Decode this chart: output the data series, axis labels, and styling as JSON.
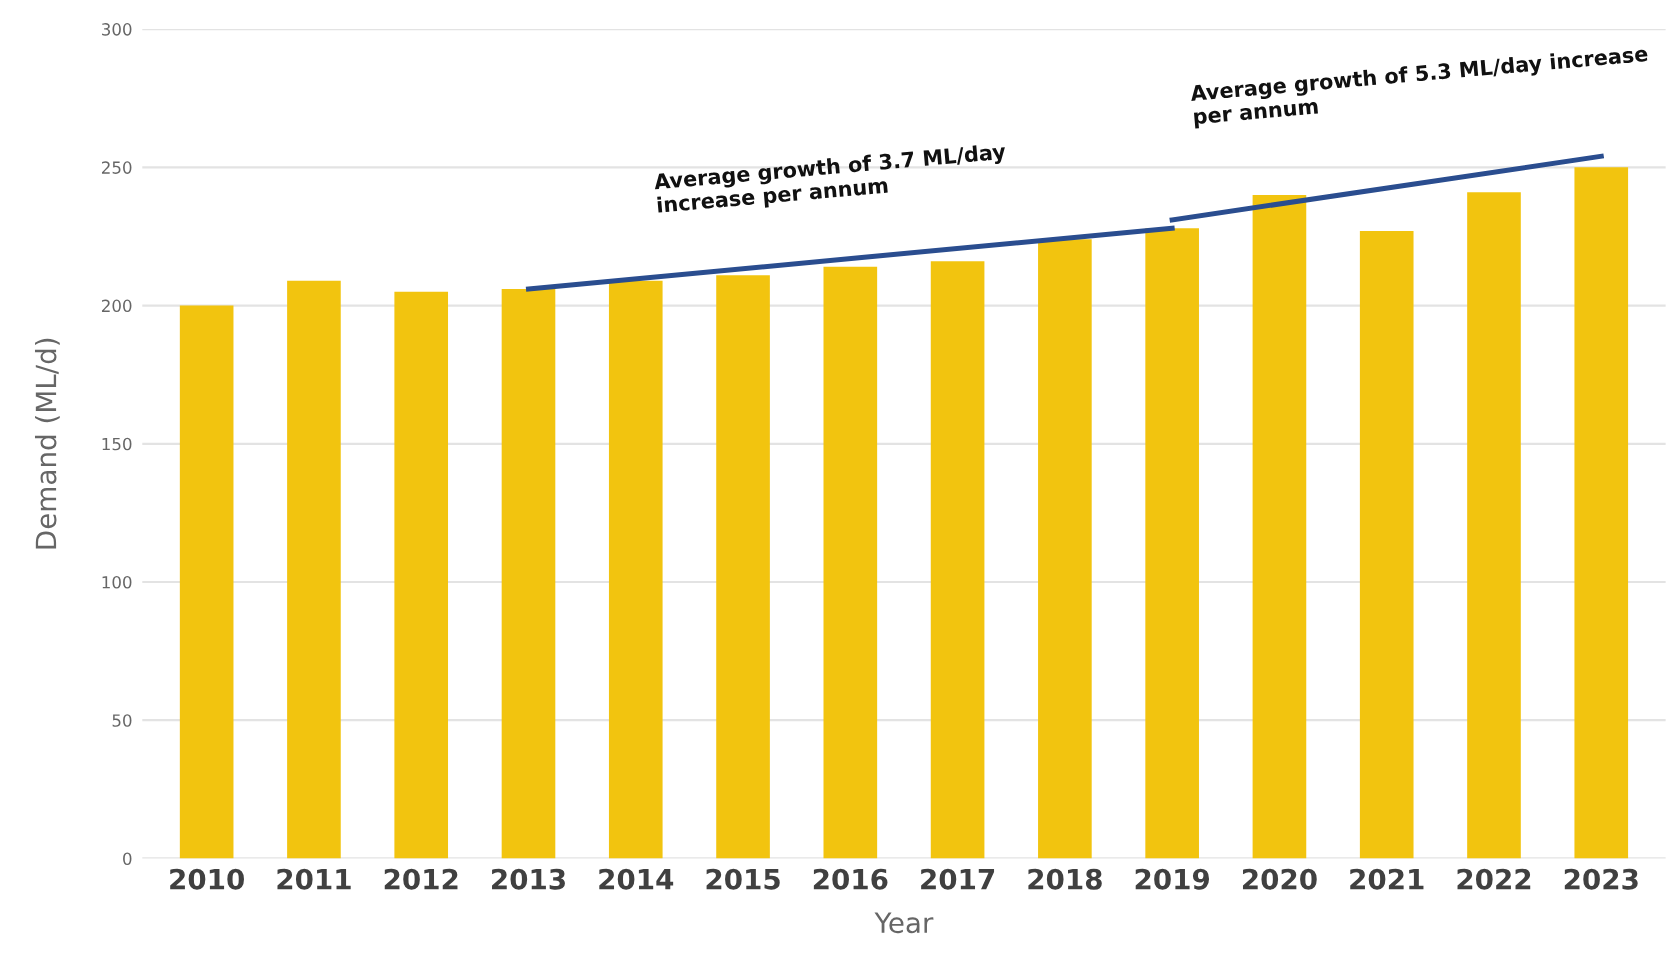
{
  "chart_data": {
    "type": "bar",
    "xlabel": "Year",
    "ylabel": "Demand (ML/d)",
    "categories": [
      "2010",
      "2011",
      "2012",
      "2013",
      "2014",
      "2015",
      "2016",
      "2017",
      "2018",
      "2019",
      "2020",
      "2021",
      "2022",
      "2023"
    ],
    "series": [
      {
        "color": "#f2c40f",
        "values": [
          200,
          209,
          205,
          206,
          209,
          211,
          214,
          216,
          224,
          228,
          240,
          227,
          241,
          250
        ]
      },
      {
        "type": "line",
        "color": "#2a4d8f",
        "values": [
          null,
          null,
          null,
          206,
          null,
          null,
          null,
          null,
          null,
          228,
          null,
          null,
          null,
          null
        ]
      },
      {
        "type": "line",
        "color": "#2a4d8f",
        "values": [
          null,
          null,
          null,
          null,
          null,
          null,
          null,
          null,
          null,
          231,
          null,
          null,
          null,
          254
        ]
      }
    ],
    "annotations": [
      "Average growth of 3.7 ML/day\nincrease per annum",
      "Average growth of 5.3 ML/day increase\nper annum"
    ],
    "ylim": [
      0,
      300
    ],
    "yticks": [
      0,
      50,
      100,
      150,
      200,
      250,
      300
    ],
    "grid": "y",
    "legend": false
  }
}
